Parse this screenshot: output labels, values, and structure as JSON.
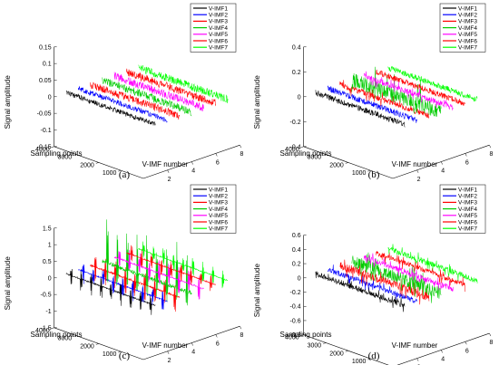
{
  "legend_labels": [
    "V-IMF1",
    "V-IMF2",
    "V-IMF3",
    "V-IMF4",
    "V-IMF5",
    "V-IMF6",
    "V-IMF7"
  ],
  "series_colors": [
    "#000000",
    "#0000ff",
    "#ff0000",
    "#00cc00",
    "#ff00ff",
    "#ff0000",
    "#00ff00"
  ],
  "chart_data": [
    {
      "type": "line",
      "panel_label": "(a)",
      "view": "3d",
      "xlabel": "V-IMF number",
      "ylabel": "Sampling points",
      "zlabel": "Signal amplitude",
      "x_ticks": [
        "2",
        "4",
        "6",
        "8"
      ],
      "y_ticks": [
        "1000",
        "2000",
        "3000",
        "4000"
      ],
      "z_ticks": [
        "-0.15",
        "-0.1",
        "-0.05",
        "0",
        "0.05",
        "0.1",
        "0.15"
      ],
      "xlim": [
        0,
        8
      ],
      "ylim": [
        0,
        4000
      ],
      "zlim": [
        -0.15,
        0.15
      ],
      "grid": false,
      "legend_position": "top-right",
      "series": [
        {
          "name": "V-IMF1",
          "imf_number": 1,
          "samples": 4000,
          "amplitude_range": [
            -0.02,
            0.02
          ],
          "pattern": "noise"
        },
        {
          "name": "V-IMF2",
          "imf_number": 2,
          "samples": 4000,
          "amplitude_range": [
            -0.02,
            0.02
          ],
          "pattern": "noise"
        },
        {
          "name": "V-IMF3",
          "imf_number": 3,
          "samples": 4000,
          "amplitude_range": [
            -0.03,
            0.03
          ],
          "pattern": "noise"
        },
        {
          "name": "V-IMF4",
          "imf_number": 4,
          "samples": 4000,
          "amplitude_range": [
            -0.03,
            0.03
          ],
          "pattern": "noise"
        },
        {
          "name": "V-IMF5",
          "imf_number": 5,
          "samples": 4000,
          "amplitude_range": [
            -0.03,
            0.03
          ],
          "pattern": "noise"
        },
        {
          "name": "V-IMF6",
          "imf_number": 6,
          "samples": 4000,
          "amplitude_range": [
            -0.03,
            0.03
          ],
          "pattern": "noise"
        },
        {
          "name": "V-IMF7",
          "imf_number": 7,
          "samples": 4000,
          "amplitude_range": [
            -0.03,
            0.03
          ],
          "pattern": "noise"
        }
      ]
    },
    {
      "type": "line",
      "panel_label": "(b)",
      "view": "3d",
      "xlabel": "V-IMF number",
      "ylabel": "Sampling points",
      "zlabel": "Signal amplitude",
      "x_ticks": [
        "2",
        "4",
        "6",
        "8"
      ],
      "y_ticks": [
        "1000",
        "2000",
        "3000",
        "4000"
      ],
      "z_ticks": [
        "-0.4",
        "-0.2",
        "0",
        "0.2",
        "0.4"
      ],
      "xlim": [
        0,
        8
      ],
      "ylim": [
        0,
        4000
      ],
      "zlim": [
        -0.4,
        0.4
      ],
      "grid": false,
      "legend_position": "top-right",
      "series": [
        {
          "name": "V-IMF1",
          "imf_number": 1,
          "samples": 4000,
          "amplitude_range": [
            -0.06,
            0.06
          ],
          "pattern": "noise"
        },
        {
          "name": "V-IMF2",
          "imf_number": 2,
          "samples": 4000,
          "amplitude_range": [
            -0.06,
            0.06
          ],
          "pattern": "noise"
        },
        {
          "name": "V-IMF3",
          "imf_number": 3,
          "samples": 4000,
          "amplitude_range": [
            -0.06,
            0.06
          ],
          "pattern": "impulses"
        },
        {
          "name": "V-IMF4",
          "imf_number": 4,
          "samples": 4000,
          "amplitude_range": [
            -0.1,
            0.2
          ],
          "pattern": "impulses"
        },
        {
          "name": "V-IMF5",
          "imf_number": 5,
          "samples": 4000,
          "amplitude_range": [
            -0.06,
            0.06
          ],
          "pattern": "impulses"
        },
        {
          "name": "V-IMF6",
          "imf_number": 6,
          "samples": 4000,
          "amplitude_range": [
            -0.06,
            0.06
          ],
          "pattern": "noise"
        },
        {
          "name": "V-IMF7",
          "imf_number": 7,
          "samples": 4000,
          "amplitude_range": [
            -0.06,
            0.06
          ],
          "pattern": "noise"
        }
      ]
    },
    {
      "type": "line",
      "panel_label": "(c)",
      "view": "3d",
      "xlabel": "V-IMF number",
      "ylabel": "Sampling points",
      "zlabel": "Signal amplitude",
      "x_ticks": [
        "2",
        "4",
        "6",
        "8"
      ],
      "y_ticks": [
        "1000",
        "2000",
        "3000",
        "4000"
      ],
      "z_ticks": [
        "-1.5",
        "-1",
        "-0.5",
        "0",
        "0.5",
        "1",
        "1.5"
      ],
      "xlim": [
        0,
        8
      ],
      "ylim": [
        0,
        4000
      ],
      "zlim": [
        -1.5,
        1.5
      ],
      "grid": false,
      "legend_position": "top-right",
      "series": [
        {
          "name": "V-IMF1",
          "imf_number": 1,
          "samples": 4000,
          "amplitude_range": [
            -0.4,
            0.3
          ],
          "pattern": "bursts"
        },
        {
          "name": "V-IMF2",
          "imf_number": 2,
          "samples": 4000,
          "amplitude_range": [
            -0.4,
            0.3
          ],
          "pattern": "bursts"
        },
        {
          "name": "V-IMF3",
          "imf_number": 3,
          "samples": 4000,
          "amplitude_range": [
            -0.5,
            0.4
          ],
          "pattern": "bursts"
        },
        {
          "name": "V-IMF4",
          "imf_number": 4,
          "samples": 4000,
          "amplitude_range": [
            -0.6,
            1.4
          ],
          "pattern": "bursts"
        },
        {
          "name": "V-IMF5",
          "imf_number": 5,
          "samples": 4000,
          "amplitude_range": [
            -0.4,
            0.4
          ],
          "pattern": "bursts"
        },
        {
          "name": "V-IMF6",
          "imf_number": 6,
          "samples": 4000,
          "amplitude_range": [
            -0.3,
            0.3
          ],
          "pattern": "bursts"
        },
        {
          "name": "V-IMF7",
          "imf_number": 7,
          "samples": 4000,
          "amplitude_range": [
            -0.3,
            0.3
          ],
          "pattern": "bursts"
        }
      ]
    },
    {
      "type": "line",
      "panel_label": "(d)",
      "view": "3d",
      "xlabel": "V-IMF number",
      "ylabel": "Sampling points",
      "zlabel": "Signal amplitude",
      "x_ticks": [
        "2",
        "4",
        "6",
        "8"
      ],
      "y_ticks": [
        "1000",
        "2000",
        "3000",
        "4000"
      ],
      "z_ticks": [
        "-0.8",
        "-0.6",
        "-0.4",
        "-0.2",
        "0",
        "0.2",
        "0.4",
        "0.6"
      ],
      "xlim": [
        0,
        8
      ],
      "ylim": [
        0,
        4000
      ],
      "zlim": [
        -0.8,
        0.6
      ],
      "grid": false,
      "legend_position": "top-right",
      "series": [
        {
          "name": "V-IMF1",
          "imf_number": 1,
          "samples": 4000,
          "amplitude_range": [
            -0.1,
            0.1
          ],
          "pattern": "impulses"
        },
        {
          "name": "V-IMF2",
          "imf_number": 2,
          "samples": 4000,
          "amplitude_range": [
            -0.1,
            0.1
          ],
          "pattern": "impulses"
        },
        {
          "name": "V-IMF3",
          "imf_number": 3,
          "samples": 4000,
          "amplitude_range": [
            -0.15,
            0.15
          ],
          "pattern": "impulses"
        },
        {
          "name": "V-IMF4",
          "imf_number": 4,
          "samples": 4000,
          "amplitude_range": [
            -0.2,
            0.25
          ],
          "pattern": "impulses"
        },
        {
          "name": "V-IMF5",
          "imf_number": 5,
          "samples": 4000,
          "amplitude_range": [
            -0.1,
            0.1
          ],
          "pattern": "impulses"
        },
        {
          "name": "V-IMF6",
          "imf_number": 6,
          "samples": 4000,
          "amplitude_range": [
            -0.1,
            0.1
          ],
          "pattern": "impulses"
        },
        {
          "name": "V-IMF7",
          "imf_number": 7,
          "samples": 4000,
          "amplitude_range": [
            -0.1,
            0.1
          ],
          "pattern": "impulses"
        }
      ]
    }
  ]
}
